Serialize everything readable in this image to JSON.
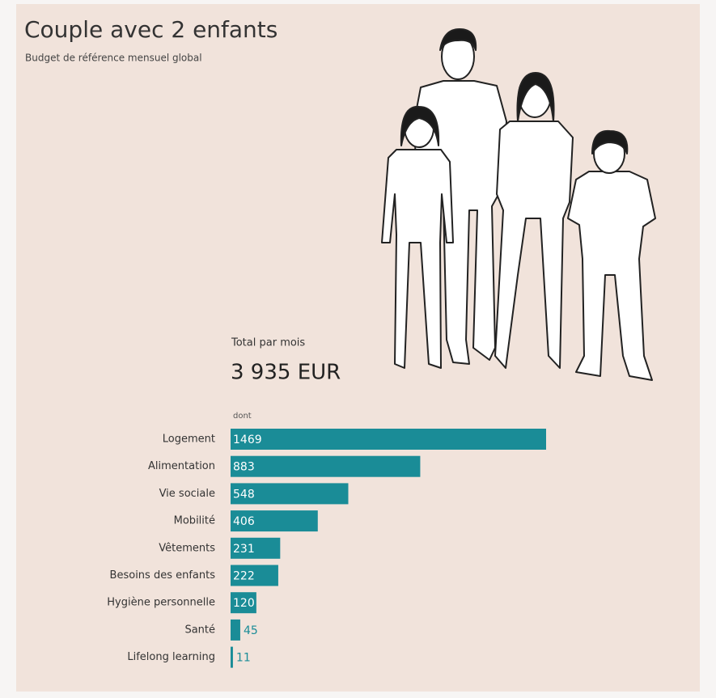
{
  "chart_data": {
    "type": "bar",
    "orientation": "horizontal",
    "title": "Couple avec 2 enfants",
    "subtitle": "Budget de référence mensuel global",
    "total_label": "Total par mois",
    "total": "3 935 EUR",
    "breakdown_label": "dont",
    "categories": [
      "Logement",
      "Alimentation",
      "Vie sociale",
      "Mobilité",
      "Vêtements",
      "Besoins des enfants",
      "Hygiène personnelle",
      "Santé",
      "Lifelong learning"
    ],
    "values": [
      1469,
      883,
      548,
      406,
      231,
      222,
      120,
      45,
      11
    ],
    "color": "#1a8c97"
  }
}
